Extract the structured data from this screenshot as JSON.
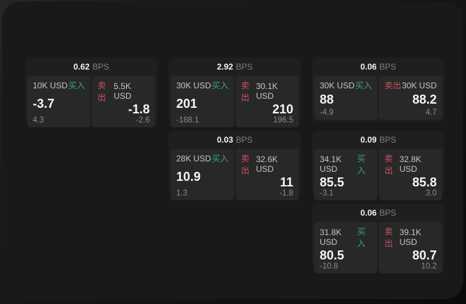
{
  "app": {
    "unit_label": "BPS",
    "buy_label": "买入",
    "sell_label": "卖出"
  },
  "colors": {
    "page_bg": "#191919",
    "card_bg": "#1f1f1f",
    "panel_bg": "#282828",
    "buy_accent": "#34a874",
    "sell_accent": "#cc5462"
  },
  "cards": [
    {
      "bps": "0.62",
      "grid": {
        "row": 1,
        "col": 1
      },
      "buy": {
        "notional": "10K USD",
        "value": "-3.7",
        "change": "4.3"
      },
      "sell": {
        "notional": "5.5K USD",
        "value": "-1.8",
        "change": "-2.6"
      }
    },
    {
      "bps": "2.92",
      "grid": {
        "row": 1,
        "col": 2
      },
      "buy": {
        "notional": "30K USD",
        "value": "201",
        "change": "-188.1"
      },
      "sell": {
        "notional": "30.1K USD",
        "value": "210",
        "change": "196.5"
      }
    },
    {
      "bps": "0.06",
      "grid": {
        "row": 1,
        "col": 3
      },
      "buy": {
        "notional": "30K USD",
        "value": "88",
        "change": "-4.9"
      },
      "sell": {
        "notional": "30K USD",
        "value": "88.2",
        "change": "4.7"
      }
    },
    {
      "bps": "0.03",
      "grid": {
        "row": 2,
        "col": 2
      },
      "buy": {
        "notional": "28K USD",
        "value": "10.9",
        "change": "1.3"
      },
      "sell": {
        "notional": "32.6K USD",
        "value": "11",
        "change": "-1.8"
      }
    },
    {
      "bps": "0.09",
      "grid": {
        "row": 2,
        "col": 3
      },
      "buy": {
        "notional": "34.1K USD",
        "value": "85.5",
        "change": "-3.1"
      },
      "sell": {
        "notional": "32.8K USD",
        "value": "85.8",
        "change": "3.0"
      }
    },
    {
      "bps": "0.06",
      "grid": {
        "row": 3,
        "col": 3
      },
      "buy": {
        "notional": "31.8K USD",
        "value": "80.5",
        "change": "-10.8"
      },
      "sell": {
        "notional": "39.1K USD",
        "value": "80.7",
        "change": "10.2"
      }
    }
  ]
}
